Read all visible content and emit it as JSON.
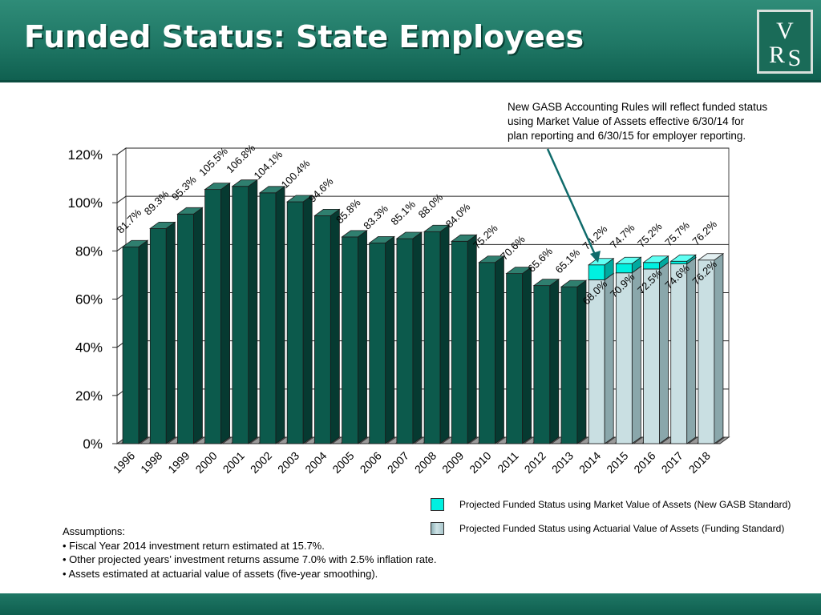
{
  "slide": {
    "title": "Funded Status: State Employees",
    "logo_text": "VRS"
  },
  "annotation": {
    "lines": [
      "New GASB Accounting Rules will reflect funded status",
      "using Market Value of Assets effective 6/30/14 for",
      "plan reporting and 6/30/15 for employer reporting."
    ]
  },
  "legend": {
    "items": [
      {
        "label": "Projected Funded Status using Market Value of Assets (New GASB Standard)",
        "color": "#00f0e0"
      },
      {
        "label": "Projected Funded Status using Actuarial Value of Assets (Funding Standard)",
        "color": "#bcd6da"
      }
    ]
  },
  "assumptions": {
    "heading": "Assumptions:",
    "items": [
      "• Fiscal Year 2014 investment return estimated at 15.7%.",
      "• Other projected years’ investment returns assume 7.0% with 2.5% inflation rate.",
      "• Assets estimated at actuarial value of assets (five-year smoothing)."
    ]
  },
  "colors": {
    "brand_green": "#1f7765",
    "historical_bar": "#0c5a4c",
    "market_value": "#00f0e0",
    "actuarial_value": "#bcd6da"
  },
  "chart_data": {
    "type": "bar",
    "title": "",
    "xlabel": "",
    "ylabel": "",
    "ylim": [
      0,
      120
    ],
    "yticks": [
      0,
      20,
      40,
      60,
      80,
      100,
      120
    ],
    "ytick_labels": [
      "0%",
      "20%",
      "40%",
      "60%",
      "80%",
      "100%",
      "120%"
    ],
    "grid": true,
    "categories": [
      "1996",
      "1998",
      "1999",
      "2000",
      "2001",
      "2002",
      "2003",
      "2004",
      "2005",
      "2006",
      "2007",
      "2008",
      "2009",
      "2010",
      "2011",
      "2012",
      "2013",
      "2014",
      "2015",
      "2016",
      "2017",
      "2018"
    ],
    "series": [
      {
        "name": "",
        "values": [
          81.7,
          89.3,
          95.3,
          105.5,
          106.8,
          104.1,
          100.4,
          94.6,
          85.8,
          83.3,
          85.1,
          88.0,
          84.0,
          75.2,
          70.6,
          65.6,
          65.1,
          null,
          null,
          null,
          null,
          null
        ],
        "labels": [
          "81.7%",
          "89.3%",
          "95.3%",
          "105.5%",
          "106.8%",
          "104.1%",
          "100.4%",
          "94.6%",
          "85.8%",
          "83.3%",
          "85.1%",
          "88.0%",
          "84.0%",
          "75.2%",
          "70.6%",
          "65.6%",
          "65.1%",
          "",
          "",
          "",
          "",
          ""
        ]
      },
      {
        "name": "Projected Funded Status using Actuarial Value of Assets (Funding Standard)",
        "values": [
          null,
          null,
          null,
          null,
          null,
          null,
          null,
          null,
          null,
          null,
          null,
          null,
          null,
          null,
          null,
          null,
          null,
          68.0,
          70.9,
          72.5,
          74.6,
          76.2
        ],
        "labels": [
          "",
          "",
          "",
          "",
          "",
          "",
          "",
          "",
          "",
          "",
          "",
          "",
          "",
          "",
          "",
          "",
          "",
          "68.0%",
          "70.9%",
          "72.5%",
          "74.6%",
          "76.2%"
        ]
      },
      {
        "name": "Projected Funded Status using Market Value of Assets (New GASB Standard)",
        "values": [
          null,
          null,
          null,
          null,
          null,
          null,
          null,
          null,
          null,
          null,
          null,
          null,
          null,
          null,
          null,
          null,
          null,
          74.2,
          74.7,
          75.2,
          75.7,
          76.2
        ],
        "labels": [
          "",
          "",
          "",
          "",
          "",
          "",
          "",
          "",
          "",
          "",
          "",
          "",
          "",
          "",
          "",
          "",
          "",
          "74.2%",
          "74.7%",
          "75.2%",
          "75.7%",
          "76.2%"
        ]
      }
    ]
  }
}
